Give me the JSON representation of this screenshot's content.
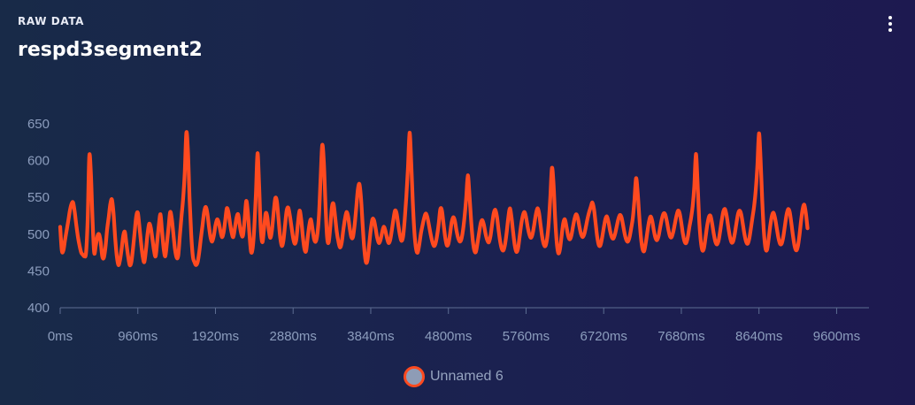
{
  "header": {
    "eyebrow": "RAW DATA",
    "title": "respd3segment2",
    "menu_icon": "more-vertical-icon"
  },
  "colors": {
    "series": "#ff4a1f",
    "legend_swatch_fill": "#8e9cb6",
    "axis": "#5d6d92",
    "tick_text": "#8c9dbd"
  },
  "legend": {
    "label": "Unnamed 6",
    "position": "bottom-center"
  },
  "chart_data": {
    "type": "line",
    "title": "respd3segment2",
    "xlabel": "",
    "ylabel": "",
    "x_unit": "ms",
    "xlim": [
      0,
      10000
    ],
    "ylim": [
      400,
      650
    ],
    "y_ticks": [
      "400",
      "450",
      "500",
      "550",
      "600",
      "650"
    ],
    "x_ticks": [
      {
        "value": 0,
        "label": "0ms"
      },
      {
        "value": 960,
        "label": "960ms"
      },
      {
        "value": 1920,
        "label": "1920ms"
      },
      {
        "value": 2880,
        "label": "2880ms"
      },
      {
        "value": 3840,
        "label": "3840ms"
      },
      {
        "value": 4800,
        "label": "4800ms"
      },
      {
        "value": 5760,
        "label": "5760ms"
      },
      {
        "value": 6720,
        "label": "6720ms"
      },
      {
        "value": 7680,
        "label": "7680ms"
      },
      {
        "value": 8640,
        "label": "8640ms"
      },
      {
        "value": 9600,
        "label": "9600ms"
      }
    ],
    "grid": false,
    "legend": "bottom-center",
    "series": [
      {
        "name": "Unnamed 6",
        "x_step_ms": 20,
        "values": [
          510,
          478,
          478,
          492,
          505,
          518,
          532,
          541,
          543,
          530,
          512,
          496,
          484,
          475,
          472,
          470,
          475,
          520,
          606,
          582,
          520,
          475,
          484,
          497,
          500,
          490,
          470,
          468,
          482,
          506,
          523,
          541,
          547,
          528,
          495,
          470,
          458,
          465,
          480,
          498,
          503,
          486,
          470,
          458,
          462,
          480,
          502,
          524,
          529,
          510,
          488,
          470,
          462,
          478,
          500,
          514,
          509,
          494,
          478,
          470,
          490,
          512,
          527,
          503,
          480,
          470,
          488,
          509,
          530,
          521,
          500,
          479,
          468,
          471,
          498,
          524,
          548,
          583,
          638,
          612,
          548,
          500,
          470,
          462,
          458,
          462,
          476,
          495,
          512,
          530,
          537,
          528,
          510,
          495,
          490,
          498,
          512,
          520,
          516,
          505,
          496,
          502,
          518,
          535,
          530,
          515,
          502,
          496,
          508,
          522,
          527,
          512,
          500,
          498,
          519,
          545,
          530,
          500,
          476,
          481,
          509,
          555,
          610,
          566,
          508,
          489,
          507,
          528,
          524,
          505,
          495,
          507,
          530,
          549,
          544,
          520,
          496,
          484,
          491,
          512,
          532,
          536,
          525,
          510,
          495,
          487,
          493,
          515,
          532,
          520,
          497,
          480,
          477,
          495,
          512,
          520,
          507,
          493,
          490,
          500,
          526,
          576,
          621,
          598,
          541,
          496,
          489,
          510,
          537,
          541,
          523,
          503,
          490,
          482,
          488,
          505,
          520,
          530,
          524,
          508,
          496,
          496,
          512,
          535,
          560,
          568,
          548,
          512,
          480,
          462,
          465,
          485,
          506,
          520,
          519,
          508,
          495,
          488,
          492,
          502,
          510,
          505,
          495,
          488,
          492,
          505,
          520,
          532,
          528,
          513,
          499,
          491,
          497,
          520,
          551,
          590,
          638,
          598,
          543,
          502,
          480,
          475,
          486,
          501,
          512,
          522,
          528,
          523,
          512,
          500,
          490,
          484,
          487,
          498,
          514,
          534,
          532,
          514,
          496,
          485,
          487,
          500,
          516,
          523,
          518,
          505,
          495,
          490,
          493,
          505,
          524,
          549,
          580,
          554,
          520,
          493,
          478,
          476,
          488,
          502,
          515,
          519,
          512,
          500,
          492,
          489,
          497,
          513,
          528,
          533,
          524,
          506,
          490,
          480,
          478,
          486,
          502,
          522,
          535,
          523,
          503,
          485,
          476,
          480,
          496,
          513,
          525,
          530,
          523,
          510,
          500,
          495,
          500,
          512,
          526,
          535,
          529,
          512,
          496,
          486,
          484,
          494,
          515,
          550,
          590,
          568,
          521,
          488,
          474,
          480,
          498,
          515,
          520,
          510,
          498,
          493,
          498,
          510,
          521,
          527,
          522,
          510,
          500,
          496,
          500,
          510,
          521,
          530,
          537,
          543,
          534,
          515,
          496,
          485,
          485,
          495,
          508,
          520,
          524,
          516,
          504,
          496,
          494,
          500,
          510,
          520,
          526,
          523,
          512,
          500,
          492,
          490,
          496,
          508,
          522,
          546,
          576,
          557,
          524,
          496,
          480,
          477,
          488,
          503,
          517,
          524,
          518,
          505,
          495,
          492,
          498,
          510,
          521,
          528,
          527,
          518,
          506,
          497,
          496,
          503,
          514,
          525,
          532,
          528,
          515,
          500,
          490,
          488,
          496,
          510,
          522,
          538,
          565,
          609,
          572,
          521,
          491,
          478,
          481,
          496,
          512,
          523,
          525,
          515,
          501,
          490,
          486,
          491,
          504,
          519,
          531,
          534,
          525,
          510,
          497,
          489,
          490,
          500,
          514,
          527,
          532,
          527,
          514,
          500,
          490,
          487,
          494,
          508,
          523,
          538,
          560,
          593,
          637,
          601,
          546,
          504,
          481,
          479,
          494,
          512,
          525,
          529,
          521,
          508,
          495,
          487,
          487,
          496,
          511,
          526,
          534,
          530,
          515,
          498,
          484,
          478,
          483,
          498,
          518,
          534,
          540,
          528,
          508
        ]
      }
    ]
  }
}
